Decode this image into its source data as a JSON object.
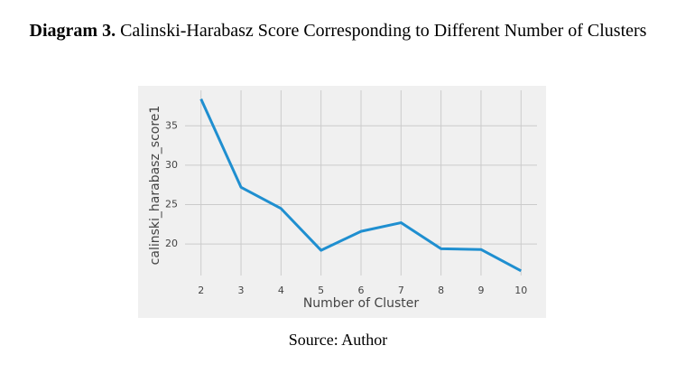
{
  "caption": {
    "label": "Diagram 3.",
    "text": "Calinski-Harabasz Score Corresponding to Different Number of Clusters"
  },
  "chart_data": {
    "type": "line",
    "x": [
      2,
      3,
      4,
      5,
      6,
      7,
      8,
      9,
      10
    ],
    "values": [
      38.4,
      27.2,
      24.5,
      19.2,
      21.6,
      22.7,
      19.4,
      19.3,
      16.6
    ],
    "color": "#1f8fd0",
    "xlabel": "Number of Cluster",
    "ylabel": "calinski_harabasz_score1",
    "xlim": [
      1.6,
      10.4
    ],
    "xticks": [
      2,
      3,
      4,
      5,
      6,
      7,
      8,
      9,
      10
    ],
    "ylim": [
      16.0,
      39.5
    ],
    "yticks": [
      20,
      25,
      30,
      35
    ],
    "grid": true
  },
  "source": "Source: Author"
}
